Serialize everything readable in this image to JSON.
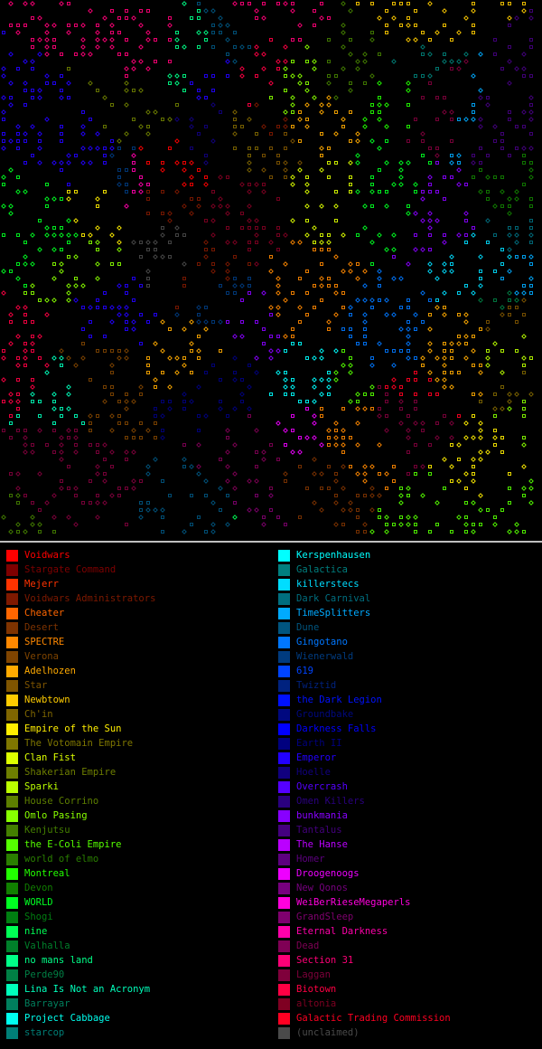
{
  "map": {
    "background": "#000000",
    "description_key": "galaxy-star-map"
  },
  "legend": {
    "left": [
      {
        "name": "Voidwars",
        "color": "#ff0000"
      },
      {
        "name": "Stargate Command",
        "color": "#7f0000"
      },
      {
        "name": "Mejerr",
        "color": "#ff3300"
      },
      {
        "name": "Voidwars Administrators",
        "color": "#7f1900"
      },
      {
        "name": "Cheater",
        "color": "#ff6600"
      },
      {
        "name": "Desert",
        "color": "#7f3300"
      },
      {
        "name": "SPECTRE",
        "color": "#ff8800"
      },
      {
        "name": "Verona",
        "color": "#7f4400"
      },
      {
        "name": "Adelhozen",
        "color": "#ffaa00"
      },
      {
        "name": "Star",
        "color": "#7f5500"
      },
      {
        "name": "Newbtown",
        "color": "#ffcc00"
      },
      {
        "name": "Ch'in",
        "color": "#7f6600"
      },
      {
        "name": "Empire of the Sun",
        "color": "#ffee00"
      },
      {
        "name": "The Votomain Empire",
        "color": "#7f7700"
      },
      {
        "name": "Clan Fist",
        "color": "#ddff00"
      },
      {
        "name": "Shakerian Empire",
        "color": "#6e7f00"
      },
      {
        "name": "Sparki",
        "color": "#bbff00"
      },
      {
        "name": "House Corrino",
        "color": "#5d7f00"
      },
      {
        "name": "Omlo Pasing",
        "color": "#88ff00"
      },
      {
        "name": "Kenjutsu",
        "color": "#447f00"
      },
      {
        "name": "the E-Coli Empire",
        "color": "#55ff00"
      },
      {
        "name": "world of elmo",
        "color": "#2a7f00"
      },
      {
        "name": "Montreal",
        "color": "#22ff00"
      },
      {
        "name": "Devon",
        "color": "#117f00"
      },
      {
        "name": "WORLD",
        "color": "#00ff22"
      },
      {
        "name": "Shogi",
        "color": "#007f11"
      },
      {
        "name": "nine",
        "color": "#00ff55"
      },
      {
        "name": "Valhalla",
        "color": "#007f2a"
      },
      {
        "name": "no mans land",
        "color": "#00ff88"
      },
      {
        "name": "Perde90",
        "color": "#007f44"
      },
      {
        "name": "Lina Is Not an Acronym",
        "color": "#00ffbb"
      },
      {
        "name": "Barrayar",
        "color": "#007f5d"
      },
      {
        "name": "Project Cabbage",
        "color": "#00ffee"
      },
      {
        "name": "starcop",
        "color": "#007f77"
      }
    ],
    "right": [
      {
        "name": "Kerspenhausen",
        "color": "#00ffff"
      },
      {
        "name": "Galactica",
        "color": "#007f7f"
      },
      {
        "name": "killerstecs",
        "color": "#00ddff"
      },
      {
        "name": "Dark Carnival",
        "color": "#006e7f"
      },
      {
        "name": "TimeSplitters",
        "color": "#00aaff"
      },
      {
        "name": "Dune",
        "color": "#00557f"
      },
      {
        "name": "Gingotano",
        "color": "#0077ff"
      },
      {
        "name": "Wienerwald",
        "color": "#003b7f"
      },
      {
        "name": "619",
        "color": "#0044ff"
      },
      {
        "name": "Twiztid",
        "color": "#00227f"
      },
      {
        "name": "the Dark Legion",
        "color": "#0011ff"
      },
      {
        "name": "Groundbake",
        "color": "#00087f"
      },
      {
        "name": "Darkness Falls",
        "color": "#0000ff"
      },
      {
        "name": "Earth II",
        "color": "#00007f"
      },
      {
        "name": "Emperor",
        "color": "#2200ff"
      },
      {
        "name": "Hoelle",
        "color": "#11007f"
      },
      {
        "name": "Overcrash",
        "color": "#5500ff"
      },
      {
        "name": "Omen Killers",
        "color": "#2a007f"
      },
      {
        "name": "bunkmania",
        "color": "#8800ff"
      },
      {
        "name": "Tantalus",
        "color": "#44007f"
      },
      {
        "name": "The Hanse",
        "color": "#bb00ff"
      },
      {
        "name": "Homer",
        "color": "#5d007f"
      },
      {
        "name": "Droogenoogs",
        "color": "#ee00ff"
      },
      {
        "name": "New Qonos",
        "color": "#77007f"
      },
      {
        "name": "WeiBerRieseMegaperls",
        "color": "#ff00dd"
      },
      {
        "name": "GrandSleep",
        "color": "#7f006e"
      },
      {
        "name": "Eternal Darkness",
        "color": "#ff00aa"
      },
      {
        "name": "Dead",
        "color": "#7f0055"
      },
      {
        "name": "Section 31",
        "color": "#ff0077"
      },
      {
        "name": "Laggan",
        "color": "#7f003b"
      },
      {
        "name": "Biotown",
        "color": "#ff0044"
      },
      {
        "name": "altonia",
        "color": "#7f0022"
      },
      {
        "name": "Galactic Trading Commission",
        "color": "#ff0022"
      },
      {
        "name": "(unclaimed)",
        "color": "#4a4a4a"
      }
    ]
  }
}
